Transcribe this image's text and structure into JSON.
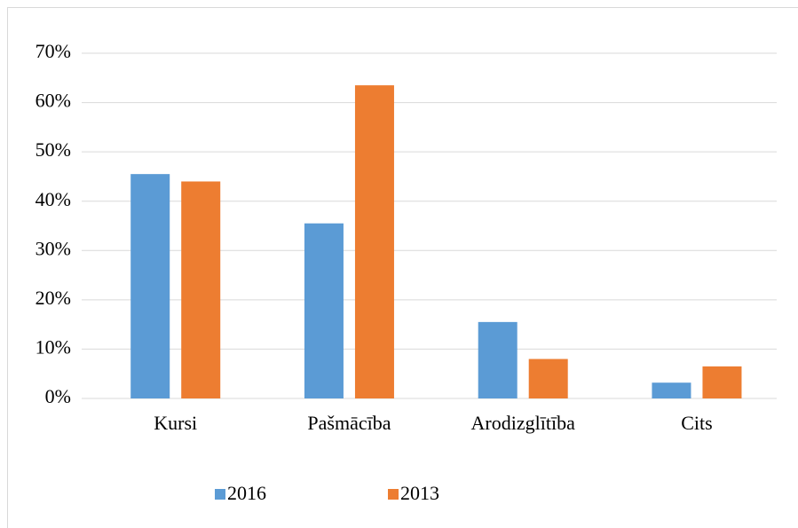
{
  "chart_data": {
    "type": "bar",
    "categories": [
      "Kursi",
      "Pašmācība",
      "Arodizglītība",
      "Cits"
    ],
    "series": [
      {
        "name": "2016",
        "color": "#5b9bd5",
        "values": [
          45.5,
          35.5,
          15.5,
          3.2
        ]
      },
      {
        "name": "2013",
        "color": "#ed7d31",
        "values": [
          44,
          63.5,
          8,
          6.5
        ]
      }
    ],
    "ylim": [
      0,
      70
    ],
    "yticks": [
      {
        "value": 0,
        "label": "0%"
      },
      {
        "value": 10,
        "label": "10%"
      },
      {
        "value": 20,
        "label": "20%"
      },
      {
        "value": 30,
        "label": "30%"
      },
      {
        "value": 40,
        "label": "40%"
      },
      {
        "value": 50,
        "label": "50%"
      },
      {
        "value": 60,
        "label": "60%"
      },
      {
        "value": 70,
        "label": "70%"
      }
    ],
    "grid": true,
    "legend": "bottom"
  }
}
